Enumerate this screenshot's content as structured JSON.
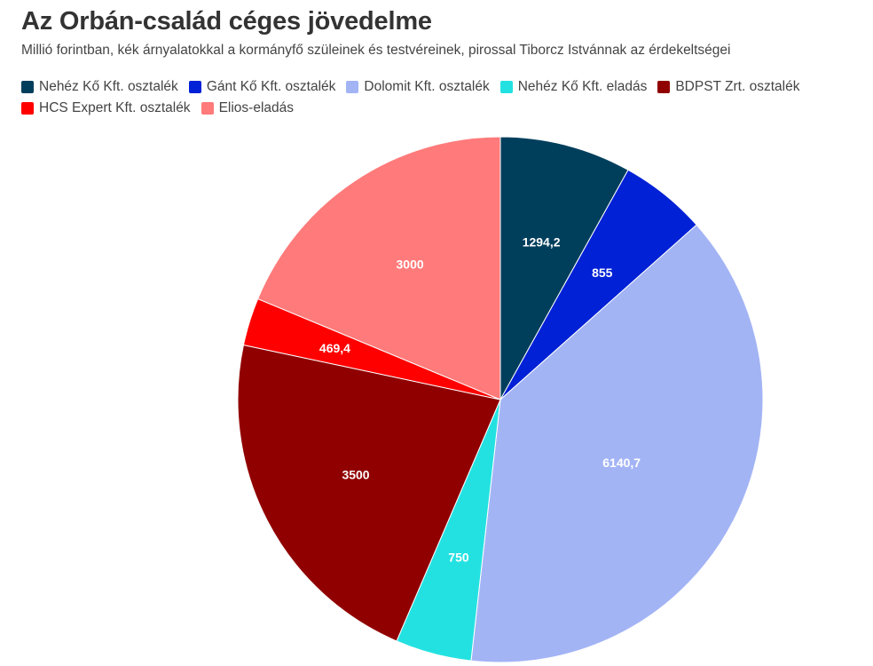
{
  "header": {
    "title": "Az Orbán-család céges jövedelme",
    "subtitle": "Millió forintban, kék árnyalatokkal a kormányfő szüleinek és testvéreinek, pirossal Tiborcz Istvánnak az érdekeltségei"
  },
  "chart_data": {
    "type": "pie",
    "title": "Az Orbán-család céges jövedelme",
    "subtitle": "Millió forintban, kék árnyalatokkal a kormányfő szüleinek és testvéreinek, pirossal Tiborcz Istvánnak az érdekeltségei",
    "legend_placement": "top",
    "start_angle": "12 o'clock, clockwise",
    "slices": [
      {
        "name": "Nehéz Kő Kft. osztalék",
        "value": 1294.2,
        "label": "1294,2",
        "color": "#003f5c"
      },
      {
        "name": "Gánt Kő Kft. osztalék",
        "value": 855,
        "label": "855",
        "color": "#0021d6"
      },
      {
        "name": "Dolomit Kft. osztalék",
        "value": 6140.7,
        "label": "6140,7",
        "color": "#a3b4f5"
      },
      {
        "name": "Nehéz Kő Kft. eladás",
        "value": 750,
        "label": "750",
        "color": "#24e1e1"
      },
      {
        "name": "BDPST Zrt. osztalék",
        "value": 3500,
        "label": "3500",
        "color": "#910000"
      },
      {
        "name": "HCS Expert Kft. osztalék",
        "value": 469.4,
        "label": "469,4",
        "color": "#ff0000"
      },
      {
        "name": "Elios-eladás",
        "value": 3000,
        "label": "3000",
        "color": "#ff7a7a"
      }
    ]
  }
}
